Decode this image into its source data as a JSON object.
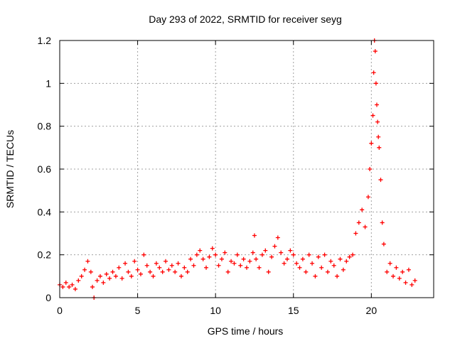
{
  "chart_data": {
    "type": "scatter",
    "title": "Day 293 of 2022, SRMTID for receiver seyg",
    "xlabel": "GPS time / hours",
    "ylabel": "SRMTID / TECUs",
    "xlim": [
      0,
      24
    ],
    "ylim": [
      0,
      1.2
    ],
    "xticks": [
      0,
      5,
      10,
      15,
      20
    ],
    "xtick_labels": [
      "0",
      "5",
      "10",
      "15",
      "20"
    ],
    "yticks": [
      0,
      0.2,
      0.4,
      0.6,
      0.8,
      1.0,
      1.2
    ],
    "ytick_labels": [
      "0",
      "0.2",
      "0.4",
      "0.6",
      "0.8",
      "1",
      "1.2"
    ],
    "grid": true,
    "marker": "plus",
    "series": [
      {
        "name": "seyg",
        "color": "#ff0000",
        "x": [
          0.0,
          0.2,
          0.4,
          0.6,
          0.8,
          1.0,
          1.2,
          1.4,
          1.6,
          1.8,
          2.0,
          2.1,
          2.2,
          2.4,
          2.6,
          2.8,
          3.0,
          3.2,
          3.4,
          3.6,
          3.8,
          4.0,
          4.2,
          4.4,
          4.6,
          4.8,
          5.0,
          5.2,
          5.4,
          5.6,
          5.8,
          6.0,
          6.2,
          6.4,
          6.6,
          6.8,
          7.0,
          7.2,
          7.4,
          7.6,
          7.8,
          8.0,
          8.2,
          8.4,
          8.6,
          8.8,
          9.0,
          9.2,
          9.4,
          9.6,
          9.8,
          10.0,
          10.2,
          10.4,
          10.6,
          10.8,
          11.0,
          11.2,
          11.4,
          11.6,
          11.8,
          12.0,
          12.2,
          12.4,
          12.5,
          12.6,
          12.8,
          13.0,
          13.2,
          13.4,
          13.6,
          13.8,
          14.0,
          14.2,
          14.4,
          14.6,
          14.8,
          15.0,
          15.2,
          15.4,
          15.6,
          15.8,
          16.0,
          16.2,
          16.4,
          16.6,
          16.8,
          17.0,
          17.2,
          17.4,
          17.6,
          17.8,
          18.0,
          18.2,
          18.4,
          18.6,
          18.8,
          19.0,
          19.2,
          19.4,
          19.6,
          19.8,
          19.9,
          20.0,
          20.1,
          20.15,
          20.2,
          20.25,
          20.3,
          20.35,
          20.4,
          20.45,
          20.5,
          20.6,
          20.7,
          20.8,
          21.0,
          21.2,
          21.4,
          21.6,
          21.8,
          22.0,
          22.2,
          22.4,
          22.6,
          22.8
        ],
        "y": [
          0.06,
          0.05,
          0.07,
          0.05,
          0.06,
          0.04,
          0.08,
          0.1,
          0.13,
          0.17,
          0.12,
          0.05,
          0.0,
          0.08,
          0.1,
          0.07,
          0.11,
          0.09,
          0.12,
          0.1,
          0.14,
          0.09,
          0.16,
          0.12,
          0.1,
          0.17,
          0.13,
          0.11,
          0.2,
          0.15,
          0.12,
          0.1,
          0.16,
          0.14,
          0.12,
          0.17,
          0.13,
          0.15,
          0.12,
          0.16,
          0.1,
          0.14,
          0.12,
          0.18,
          0.15,
          0.2,
          0.22,
          0.18,
          0.14,
          0.19,
          0.23,
          0.2,
          0.15,
          0.18,
          0.21,
          0.12,
          0.17,
          0.16,
          0.2,
          0.15,
          0.18,
          0.14,
          0.17,
          0.21,
          0.29,
          0.18,
          0.14,
          0.2,
          0.22,
          0.12,
          0.19,
          0.24,
          0.28,
          0.21,
          0.16,
          0.18,
          0.22,
          0.2,
          0.16,
          0.14,
          0.18,
          0.12,
          0.2,
          0.16,
          0.1,
          0.19,
          0.14,
          0.2,
          0.12,
          0.17,
          0.15,
          0.1,
          0.18,
          0.13,
          0.17,
          0.19,
          0.2,
          0.3,
          0.35,
          0.41,
          0.33,
          0.47,
          0.6,
          0.72,
          0.85,
          1.05,
          1.2,
          1.15,
          1.0,
          0.9,
          0.82,
          0.75,
          0.7,
          0.55,
          0.35,
          0.25,
          0.12,
          0.16,
          0.1,
          0.14,
          0.09,
          0.12,
          0.07,
          0.13,
          0.06,
          0.08
        ]
      }
    ]
  }
}
